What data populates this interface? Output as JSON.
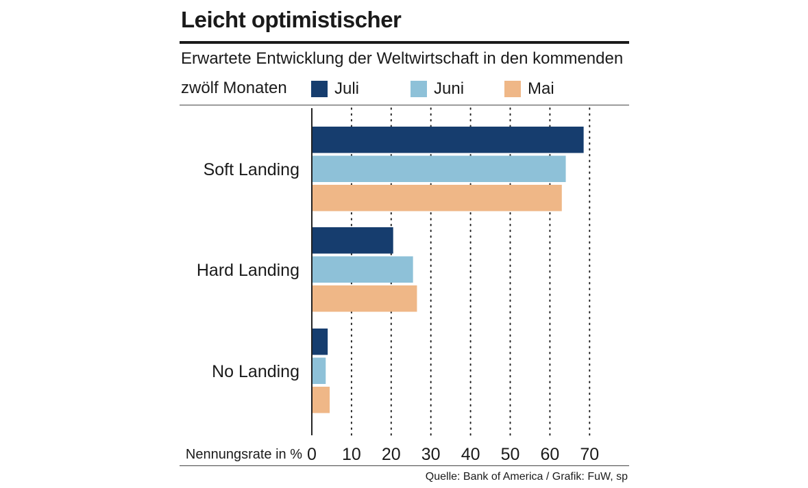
{
  "title": "Leicht optimistischer",
  "subtitle_line1": "Erwartete Entwicklung der Weltwirtschaft in den kommenden",
  "subtitle_line2": "zwölf Monaten",
  "source": "Quelle: Bank of America / Grafik: FuW, sp",
  "colors": {
    "juli": "#163d6e",
    "juni": "#8ec1d8",
    "mai": "#efb787",
    "grid": "#222222",
    "text": "#1a1a1a"
  },
  "chart_data": {
    "type": "bar",
    "orientation": "horizontal",
    "title": "Leicht optimistischer",
    "subtitle": "Erwartete Entwicklung der Weltwirtschaft in den kommenden zwölf Monaten",
    "categories": [
      "Soft Landing",
      "Hard Landing",
      "No Landing"
    ],
    "series": [
      {
        "name": "Juli",
        "color": "#163d6e",
        "values": [
          68.5,
          20.5,
          4
        ]
      },
      {
        "name": "Juni",
        "color": "#8ec1d8",
        "values": [
          64,
          25.5,
          3.5
        ]
      },
      {
        "name": "Mai",
        "color": "#efb787",
        "values": [
          63,
          26.5,
          4.5
        ]
      }
    ],
    "xlabel": "Nennungsrate in %",
    "ylabel": "",
    "xticks": [
      0,
      10,
      20,
      30,
      40,
      50,
      60,
      70
    ],
    "xlim": [
      0,
      80
    ],
    "grid": "vertical-dotted",
    "legend_position": "top"
  }
}
